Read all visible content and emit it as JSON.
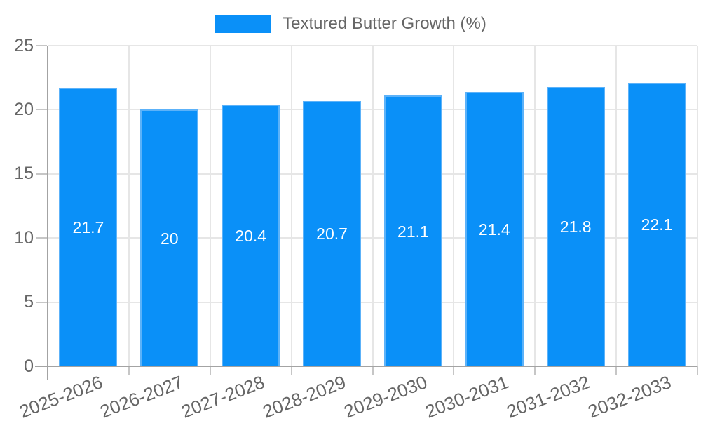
{
  "legend": {
    "label": "Textured Butter Growth (%)"
  },
  "chart_data": {
    "type": "bar",
    "title": "Textured Butter Growth (%)",
    "categories": [
      "2025-2026",
      "2026-2027",
      "2027-2028",
      "2028-2029",
      "2029-2030",
      "2030-2031",
      "2031-2032",
      "2032-2033"
    ],
    "values": [
      21.7,
      20,
      20.4,
      20.7,
      21.1,
      21.4,
      21.8,
      22.1
    ],
    "xlabel": "",
    "ylabel": "",
    "ylim": [
      0,
      25
    ],
    "yticks": [
      0,
      5,
      10,
      15,
      20,
      25
    ],
    "grid": true,
    "legend_position": "top",
    "colors": {
      "bar": "#0a90f8",
      "bar_border": "#5cb2f9",
      "grid": "#e6e6e6",
      "axis": "#a3a3a3",
      "tick": "#c6c6c6",
      "tick_text": "#666666",
      "value_label": "#ffffff"
    }
  }
}
